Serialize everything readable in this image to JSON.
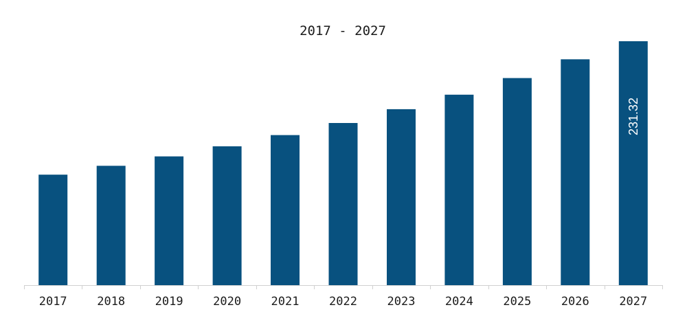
{
  "chart_data": {
    "type": "bar",
    "title": "2017 - 2027",
    "xlabel": "",
    "ylabel": "",
    "categories": [
      "2017",
      "2018",
      "2019",
      "2020",
      "2021",
      "2022",
      "2023",
      "2024",
      "2025",
      "2026",
      "2027"
    ],
    "values": [
      104.8,
      113.2,
      122.1,
      131.7,
      142.3,
      153.8,
      166.9,
      180.6,
      196.4,
      214.2,
      231.32
    ],
    "data_labels": [
      null,
      null,
      null,
      null,
      null,
      null,
      null,
      null,
      null,
      null,
      "231.32"
    ],
    "ylim": [
      0,
      231.32
    ],
    "grid": false,
    "legend": "none",
    "colors": {
      "bar": "#08517f",
      "axis": "#d0d0d0",
      "text": "#1a1a1a",
      "label": "#ffffff"
    }
  }
}
